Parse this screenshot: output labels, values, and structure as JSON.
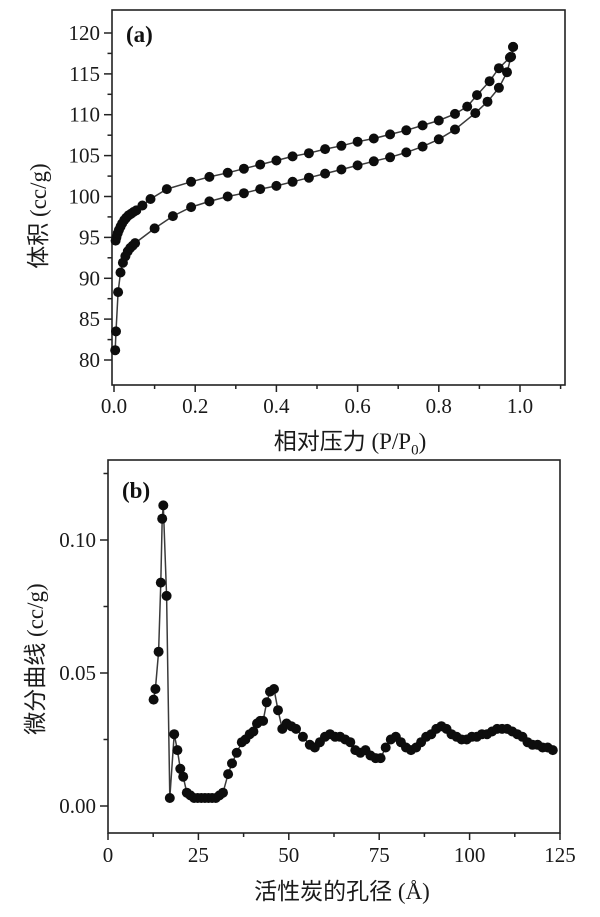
{
  "figure": {
    "background": "#ffffff",
    "text_color": "#1a1a1a",
    "curve_color": "#3a3a3a",
    "marker_color": "#0d0d0d"
  },
  "charts": [
    {
      "panel_label": "(a)",
      "ylabel": "体积 (cc/g)",
      "xlabel_prefix": "相对压力 (P/P",
      "xlabel_sub": "0",
      "xlabel_suffix": ")"
    },
    {
      "panel_label": "(b)",
      "ylabel": "微分曲线 (cc/g)",
      "xlabel": "活性炭的孔径 (Å)"
    }
  ],
  "chart_data": [
    {
      "type": "line",
      "panel": "(a)",
      "xlabel": "相对压力 (P/P0)",
      "ylabel": "体积 (cc/g)",
      "xlim": [
        -0.02,
        1.11
      ],
      "ylim": [
        77,
        122.8
      ],
      "grid": false,
      "legend": "none",
      "marker": "filled-circle",
      "x_ticks_major": [
        0.0,
        0.2,
        0.4,
        0.6,
        0.8,
        1.0
      ],
      "x_tick_labels": [
        "0.0",
        "0.2",
        "0.4",
        "0.6",
        "0.8",
        "1.0"
      ],
      "x_ticks_minor": [
        0.1,
        0.3,
        0.5,
        0.7,
        0.9,
        1.1
      ],
      "y_ticks_major": [
        80,
        85,
        90,
        95,
        100,
        105,
        110,
        115,
        120
      ],
      "y_tick_labels": [
        "80",
        "85",
        "90",
        "95",
        "100",
        "105",
        "110",
        "115",
        "120"
      ],
      "y_ticks_minor": [
        82.5,
        87.5,
        92.5,
        97.5,
        102.5,
        107.5,
        112.5,
        117.5
      ],
      "series": [
        {
          "name": "adsorption-branch-lower",
          "points": [
            [
              0.003,
              81.2
            ],
            [
              0.005,
              83.5
            ],
            [
              0.01,
              88.3
            ],
            [
              0.016,
              90.7
            ],
            [
              0.022,
              91.9
            ],
            [
              0.028,
              92.7
            ],
            [
              0.034,
              93.3
            ],
            [
              0.04,
              93.7
            ],
            [
              0.046,
              94.0
            ],
            [
              0.052,
              94.3
            ],
            [
              0.1,
              96.1
            ],
            [
              0.145,
              97.6
            ],
            [
              0.19,
              98.7
            ],
            [
              0.235,
              99.4
            ],
            [
              0.28,
              100.0
            ],
            [
              0.32,
              100.4
            ],
            [
              0.36,
              100.9
            ],
            [
              0.4,
              101.3
            ],
            [
              0.44,
              101.8
            ],
            [
              0.48,
              102.3
            ],
            [
              0.52,
              102.8
            ],
            [
              0.56,
              103.3
            ],
            [
              0.6,
              103.8
            ],
            [
              0.64,
              104.3
            ],
            [
              0.68,
              104.8
            ],
            [
              0.72,
              105.4
            ],
            [
              0.76,
              106.1
            ],
            [
              0.8,
              107.0
            ],
            [
              0.84,
              108.2
            ],
            [
              0.89,
              110.2
            ],
            [
              0.92,
              111.6
            ],
            [
              0.948,
              113.3
            ],
            [
              0.968,
              115.2
            ],
            [
              0.978,
              117.1
            ],
            [
              0.983,
              118.3
            ]
          ]
        },
        {
          "name": "desorption-branch-upper",
          "points": [
            [
              0.004,
              94.6
            ],
            [
              0.006,
              95.0
            ],
            [
              0.009,
              95.5
            ],
            [
              0.012,
              95.9
            ],
            [
              0.016,
              96.3
            ],
            [
              0.02,
              96.7
            ],
            [
              0.025,
              97.1
            ],
            [
              0.03,
              97.4
            ],
            [
              0.036,
              97.7
            ],
            [
              0.042,
              97.9
            ],
            [
              0.048,
              98.1
            ],
            [
              0.055,
              98.3
            ],
            [
              0.07,
              98.9
            ],
            [
              0.09,
              99.7
            ],
            [
              0.13,
              100.9
            ],
            [
              0.19,
              101.8
            ],
            [
              0.235,
              102.4
            ],
            [
              0.28,
              102.9
            ],
            [
              0.32,
              103.4
            ],
            [
              0.36,
              103.9
            ],
            [
              0.4,
              104.4
            ],
            [
              0.44,
              104.9
            ],
            [
              0.48,
              105.3
            ],
            [
              0.52,
              105.8
            ],
            [
              0.56,
              106.2
            ],
            [
              0.6,
              106.7
            ],
            [
              0.64,
              107.1
            ],
            [
              0.68,
              107.6
            ],
            [
              0.72,
              108.1
            ],
            [
              0.76,
              108.7
            ],
            [
              0.8,
              109.3
            ],
            [
              0.84,
              110.1
            ],
            [
              0.87,
              111.0
            ],
            [
              0.894,
              112.4
            ],
            [
              0.925,
              114.1
            ],
            [
              0.948,
              115.7
            ],
            [
              0.975,
              117.0
            ],
            [
              0.983,
              118.3
            ]
          ]
        }
      ]
    },
    {
      "type": "line",
      "panel": "(b)",
      "xlabel": "活性炭的孔径 (Å)",
      "ylabel": "微分曲线 (cc/g)",
      "xlim": [
        0,
        125
      ],
      "ylim": [
        -0.01,
        0.13
      ],
      "grid": false,
      "legend": "none",
      "marker": "filled-circle",
      "x_ticks_major": [
        0,
        25,
        50,
        75,
        100,
        125
      ],
      "x_tick_labels": [
        "0",
        "25",
        "50",
        "75",
        "100",
        "125"
      ],
      "x_ticks_minor": [
        12.5,
        37.5,
        62.5,
        87.5,
        112.5
      ],
      "y_ticks_major": [
        0.0,
        0.05,
        0.1
      ],
      "y_tick_labels": [
        "0.00",
        "0.05",
        "0.10"
      ],
      "y_ticks_minor": [
        0.025,
        0.075,
        0.125
      ],
      "series": [
        {
          "name": "pore-size-distribution",
          "points": [
            [
              12.6,
              0.04
            ],
            [
              13.1,
              0.044
            ],
            [
              14.0,
              0.058
            ],
            [
              14.6,
              0.084
            ],
            [
              15.0,
              0.108
            ],
            [
              15.3,
              0.113
            ],
            [
              16.2,
              0.079
            ],
            [
              17.1,
              0.003
            ],
            [
              18.3,
              0.027
            ],
            [
              19.2,
              0.021
            ],
            [
              20.0,
              0.014
            ],
            [
              20.8,
              0.011
            ],
            [
              21.8,
              0.005
            ],
            [
              22.8,
              0.004
            ],
            [
              23.8,
              0.003
            ],
            [
              24.8,
              0.003
            ],
            [
              25.8,
              0.003
            ],
            [
              26.8,
              0.003
            ],
            [
              27.8,
              0.003
            ],
            [
              28.8,
              0.003
            ],
            [
              29.8,
              0.003
            ],
            [
              30.8,
              0.004
            ],
            [
              31.8,
              0.005
            ],
            [
              33.2,
              0.012
            ],
            [
              34.3,
              0.016
            ],
            [
              35.6,
              0.02
            ],
            [
              37.0,
              0.024
            ],
            [
              38.0,
              0.025
            ],
            [
              39.2,
              0.027
            ],
            [
              40.2,
              0.028
            ],
            [
              41.2,
              0.031
            ],
            [
              42.1,
              0.032
            ],
            [
              42.9,
              0.032
            ],
            [
              43.9,
              0.039
            ],
            [
              44.8,
              0.043
            ],
            [
              45.9,
              0.044
            ],
            [
              47.0,
              0.036
            ],
            [
              48.2,
              0.029
            ],
            [
              49.4,
              0.031
            ],
            [
              50.7,
              0.03
            ],
            [
              52.0,
              0.029
            ],
            [
              53.9,
              0.026
            ],
            [
              55.8,
              0.023
            ],
            [
              57.2,
              0.022
            ],
            [
              58.6,
              0.024
            ],
            [
              60.0,
              0.026
            ],
            [
              61.4,
              0.027
            ],
            [
              62.8,
              0.026
            ],
            [
              64.2,
              0.026
            ],
            [
              65.6,
              0.025
            ],
            [
              67.0,
              0.024
            ],
            [
              68.4,
              0.021
            ],
            [
              69.8,
              0.02
            ],
            [
              71.2,
              0.021
            ],
            [
              72.6,
              0.019
            ],
            [
              74.0,
              0.018
            ],
            [
              75.4,
              0.018
            ],
            [
              76.8,
              0.022
            ],
            [
              78.2,
              0.025
            ],
            [
              79.6,
              0.026
            ],
            [
              81.0,
              0.024
            ],
            [
              82.4,
              0.022
            ],
            [
              83.8,
              0.021
            ],
            [
              85.2,
              0.022
            ],
            [
              86.6,
              0.024
            ],
            [
              88.0,
              0.026
            ],
            [
              89.4,
              0.027
            ],
            [
              90.8,
              0.029
            ],
            [
              92.2,
              0.03
            ],
            [
              93.6,
              0.029
            ],
            [
              95.0,
              0.027
            ],
            [
              96.4,
              0.026
            ],
            [
              97.8,
              0.025
            ],
            [
              99.2,
              0.025
            ],
            [
              100.6,
              0.026
            ],
            [
              102.0,
              0.026
            ],
            [
              103.4,
              0.027
            ],
            [
              104.8,
              0.027
            ],
            [
              106.2,
              0.028
            ],
            [
              107.6,
              0.029
            ],
            [
              109.0,
              0.029
            ],
            [
              110.4,
              0.029
            ],
            [
              111.8,
              0.028
            ],
            [
              113.2,
              0.027
            ],
            [
              114.6,
              0.026
            ],
            [
              116.0,
              0.024
            ],
            [
              117.4,
              0.023
            ],
            [
              118.8,
              0.023
            ],
            [
              120.2,
              0.022
            ],
            [
              121.6,
              0.022
            ],
            [
              123.0,
              0.021
            ]
          ]
        }
      ]
    }
  ]
}
